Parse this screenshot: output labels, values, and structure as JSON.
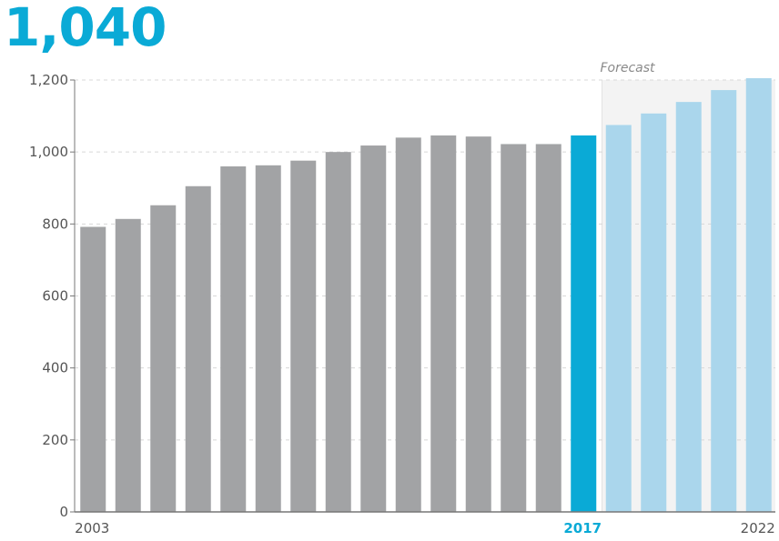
{
  "headline": "1,040",
  "chart_data": {
    "type": "bar",
    "categories": [
      "2003",
      "2004",
      "2005",
      "2006",
      "2007",
      "2008",
      "2009",
      "2010",
      "2011",
      "2012",
      "2013",
      "2014",
      "2015",
      "2016",
      "2017",
      "2018",
      "2019",
      "2020",
      "2021",
      "2022"
    ],
    "values": [
      792,
      814,
      852,
      905,
      960,
      963,
      976,
      1000,
      1018,
      1040,
      1046,
      1043,
      1022,
      1022,
      1046,
      1075,
      1107,
      1139,
      1172,
      1205
    ],
    "bar_kind": [
      "actual",
      "actual",
      "actual",
      "actual",
      "actual",
      "actual",
      "actual",
      "actual",
      "actual",
      "actual",
      "actual",
      "actual",
      "actual",
      "actual",
      "current",
      "forecast",
      "forecast",
      "forecast",
      "forecast",
      "forecast"
    ],
    "ylim": [
      0,
      1200
    ],
    "yticks": [
      0,
      200,
      400,
      600,
      800,
      1000,
      1200
    ],
    "ytick_labels": [
      "0",
      "200",
      "400",
      "600",
      "800",
      "1,000",
      "1,200"
    ],
    "xtick_labels": [
      {
        "category": "2003",
        "label": "2003",
        "highlight": false
      },
      {
        "category": "2017",
        "label": "2017",
        "highlight": true
      },
      {
        "category": "2022",
        "label": "2022",
        "highlight": false
      }
    ],
    "forecast_region": {
      "start": "2018",
      "end": "2022",
      "label": "Forecast"
    },
    "grid": true,
    "colors": {
      "actual": "#a2a3a5",
      "current": "#0aaad6",
      "forecast": "#aad6ec",
      "highlight_text": "#0aaad6",
      "forecast_shade": "#f3f3f3"
    }
  }
}
